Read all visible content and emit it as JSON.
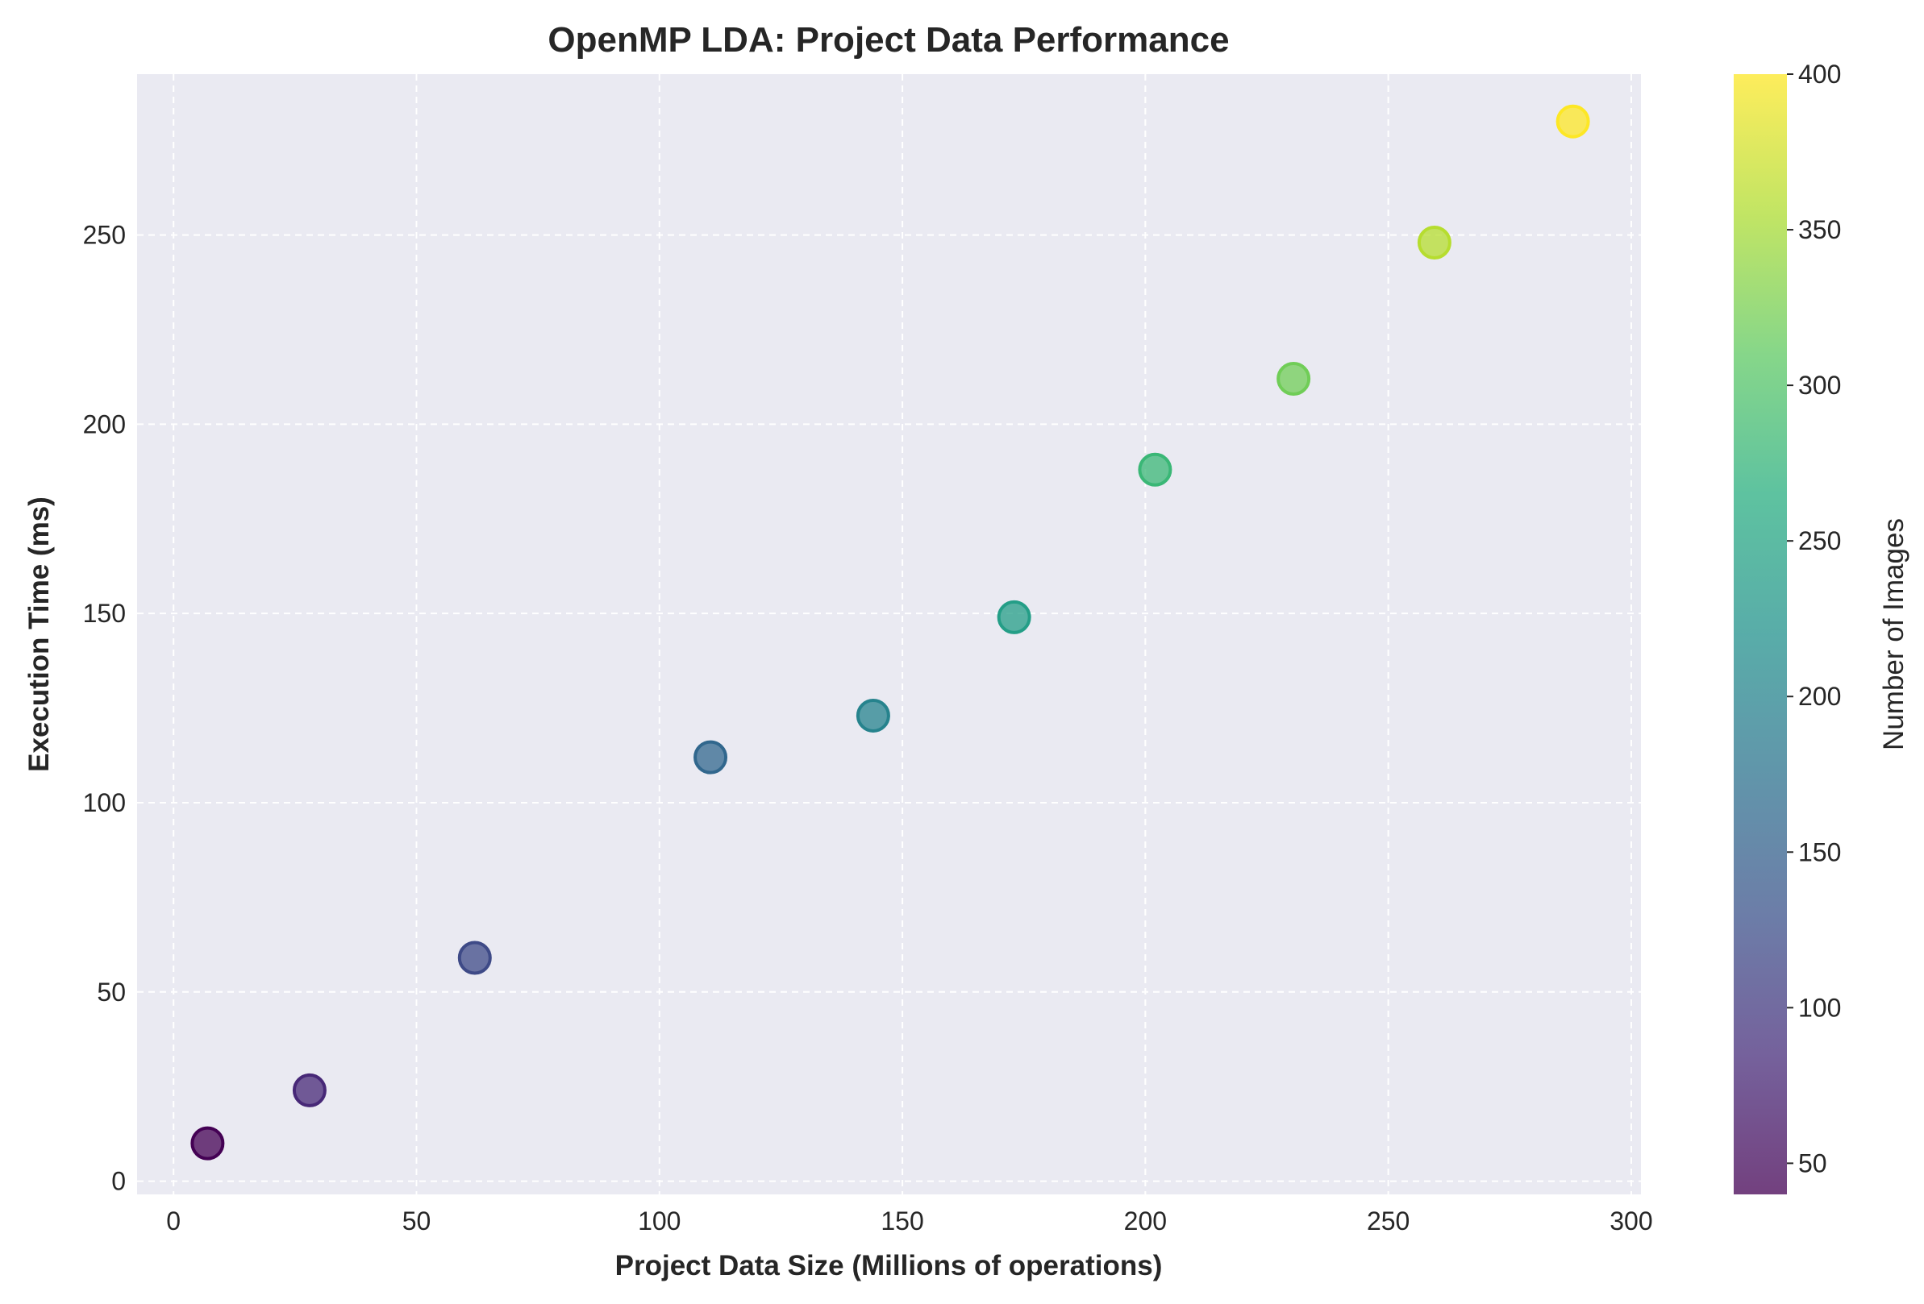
{
  "chart_data": {
    "type": "scatter",
    "title": "OpenMP LDA: Project Data Performance",
    "xlabel": "Project Data Size (Millions of operations)",
    "ylabel": "Execution Time (ms)",
    "xlim": [
      -7.5,
      302
    ],
    "ylim": [
      -3.5,
      292.5
    ],
    "xticks": [
      "0",
      "50",
      "100",
      "150",
      "200",
      "250",
      "300"
    ],
    "yticks": [
      "0",
      "50",
      "100",
      "150",
      "200",
      "250"
    ],
    "grid": true,
    "points": [
      {
        "x": 7,
        "y": 10,
        "c": 40
      },
      {
        "x": 28,
        "y": 24,
        "c": 80
      },
      {
        "x": 62,
        "y": 59,
        "c": 120
      },
      {
        "x": 110.5,
        "y": 112,
        "c": 160
      },
      {
        "x": 144,
        "y": 123,
        "c": 200
      },
      {
        "x": 173,
        "y": 149,
        "c": 240
      },
      {
        "x": 202,
        "y": 188,
        "c": 280
      },
      {
        "x": 230.5,
        "y": 212,
        "c": 320
      },
      {
        "x": 259.5,
        "y": 248,
        "c": 360
      },
      {
        "x": 288,
        "y": 280,
        "c": 400
      }
    ],
    "colorbar": {
      "label": "Number of Images",
      "range": [
        40,
        400
      ],
      "ticks": [
        "50",
        "100",
        "150",
        "200",
        "250",
        "300",
        "350",
        "400"
      ],
      "colormap": "viridis"
    },
    "colors": {
      "plot_background": "#eaeaf2",
      "grid": "#ffffff"
    }
  }
}
